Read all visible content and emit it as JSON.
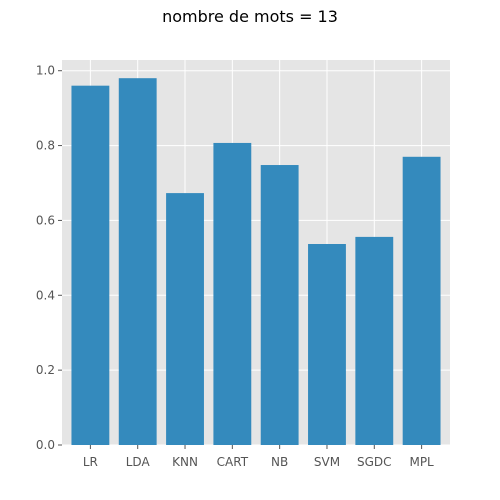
{
  "chart_data": {
    "type": "bar",
    "title": "nombre de mots = 13",
    "xlabel": "",
    "ylabel": "",
    "categories": [
      "LR",
      "LDA",
      "KNN",
      "CART",
      "NB",
      "SVM",
      "SGDC",
      "MPL"
    ],
    "values": [
      0.96,
      0.98,
      0.673,
      0.807,
      0.748,
      0.537,
      0.556,
      0.77
    ],
    "ylim": [
      0,
      1.0
    ],
    "yticks": [
      "0.0",
      "0.2",
      "0.4",
      "0.6",
      "0.8",
      "1.0"
    ],
    "grid": true,
    "legend": "none",
    "style": "ggplot"
  },
  "colors": {
    "bar": "#348ABD",
    "plot_background": "#E5E5E5",
    "grid": "#FFFFFF",
    "tick_label": "#555555"
  }
}
